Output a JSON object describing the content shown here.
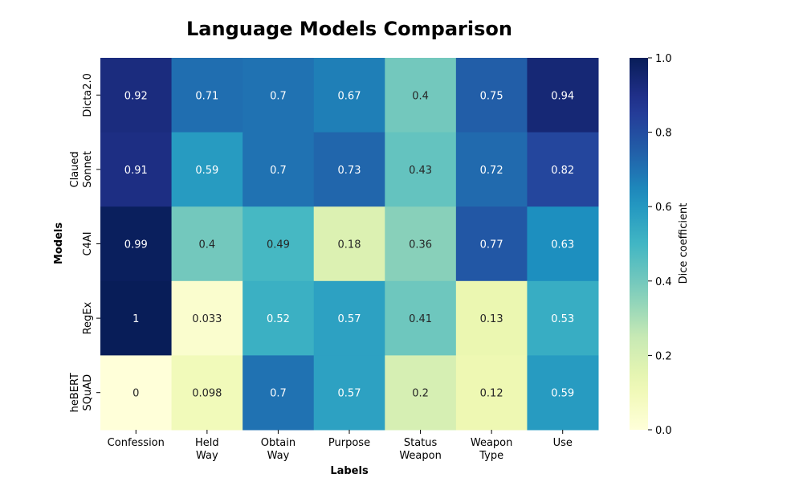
{
  "chart_data": {
    "type": "heatmap",
    "title": "Language Models Comparison",
    "xlabel": "Labels",
    "ylabel": "Models",
    "x_categories": [
      [
        "Confession"
      ],
      [
        "Held",
        "Way"
      ],
      [
        "Obtain",
        "Way"
      ],
      [
        "Purpose"
      ],
      [
        "Status",
        "Weapon"
      ],
      [
        "Weapon",
        "Type"
      ],
      [
        "Use"
      ]
    ],
    "y_categories": [
      [
        "Dicta2.0"
      ],
      [
        "Claued",
        "Sonnet"
      ],
      [
        "C4AI"
      ],
      [
        "RegEx"
      ],
      [
        "heBERT",
        "SQuAD"
      ]
    ],
    "values": [
      [
        0.92,
        0.71,
        0.7,
        0.67,
        0.4,
        0.75,
        0.94
      ],
      [
        0.91,
        0.59,
        0.7,
        0.73,
        0.43,
        0.72,
        0.82
      ],
      [
        0.99,
        0.4,
        0.49,
        0.18,
        0.36,
        0.77,
        0.63
      ],
      [
        1,
        0.033,
        0.52,
        0.57,
        0.41,
        0.13,
        0.53
      ],
      [
        0,
        0.098,
        0.7,
        0.57,
        0.2,
        0.12,
        0.59
      ]
    ],
    "colorbar": {
      "label": "Dice coefficient",
      "range": [
        0,
        1
      ],
      "ticks": [
        "0.0",
        "0.2",
        "0.4",
        "0.6",
        "0.8",
        "1.0"
      ],
      "colormap": "YlGnBu"
    }
  }
}
